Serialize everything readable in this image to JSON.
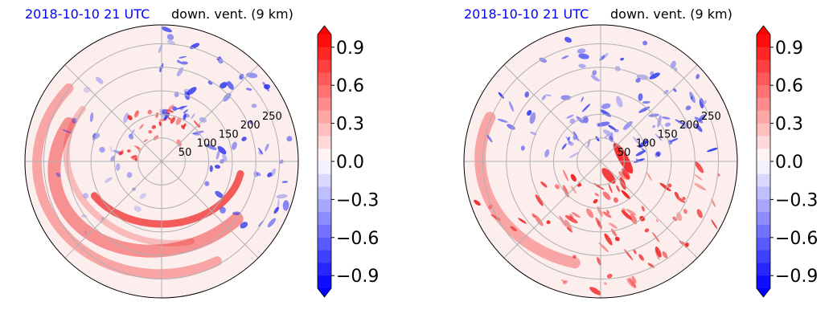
{
  "chart_data": [
    {
      "type": "heatmap",
      "projection": "polar",
      "title_left": "2018-10-10 21 UTC",
      "title_right": "down. vent. (9 km)",
      "title_left_color": "#0000ff",
      "radial_ticks": [
        "50",
        "100",
        "150",
        "200",
        "250"
      ],
      "radial_values": [
        50,
        100,
        150,
        200,
        250
      ],
      "radial_max": 290,
      "grid": true,
      "colorbar": {
        "ticks": [
          "0.9",
          "0.6",
          "0.3",
          "0.0",
          "−0.3",
          "−0.6",
          "−0.9"
        ],
        "tick_values": [
          0.9,
          0.6,
          0.3,
          0.0,
          -0.3,
          -0.6,
          -0.9
        ],
        "range": [
          -1.0,
          1.0
        ],
        "extend": "both",
        "colormap": "bwr",
        "high_color": "#ff0000",
        "zero_color": "#ffffff",
        "low_color": "#0000ff"
      }
    },
    {
      "type": "heatmap",
      "projection": "polar",
      "title_left": "2018-10-10 21 UTC",
      "title_right": "down. vent. (9 km)",
      "title_left_color": "#0000ff",
      "radial_ticks": [
        "50",
        "100",
        "150",
        "200",
        "250"
      ],
      "radial_values": [
        50,
        100,
        150,
        200,
        250
      ],
      "radial_max": 290,
      "grid": true,
      "colorbar": {
        "ticks": [
          "0.9",
          "0.6",
          "0.3",
          "0.0",
          "−0.3",
          "−0.6",
          "−0.9"
        ],
        "tick_values": [
          0.9,
          0.6,
          0.3,
          0.0,
          -0.3,
          -0.6,
          -0.9
        ],
        "range": [
          -1.0,
          1.0
        ],
        "extend": "both",
        "colormap": "bwr",
        "high_color": "#ff0000",
        "zero_color": "#ffffff",
        "low_color": "#0000ff"
      }
    }
  ]
}
